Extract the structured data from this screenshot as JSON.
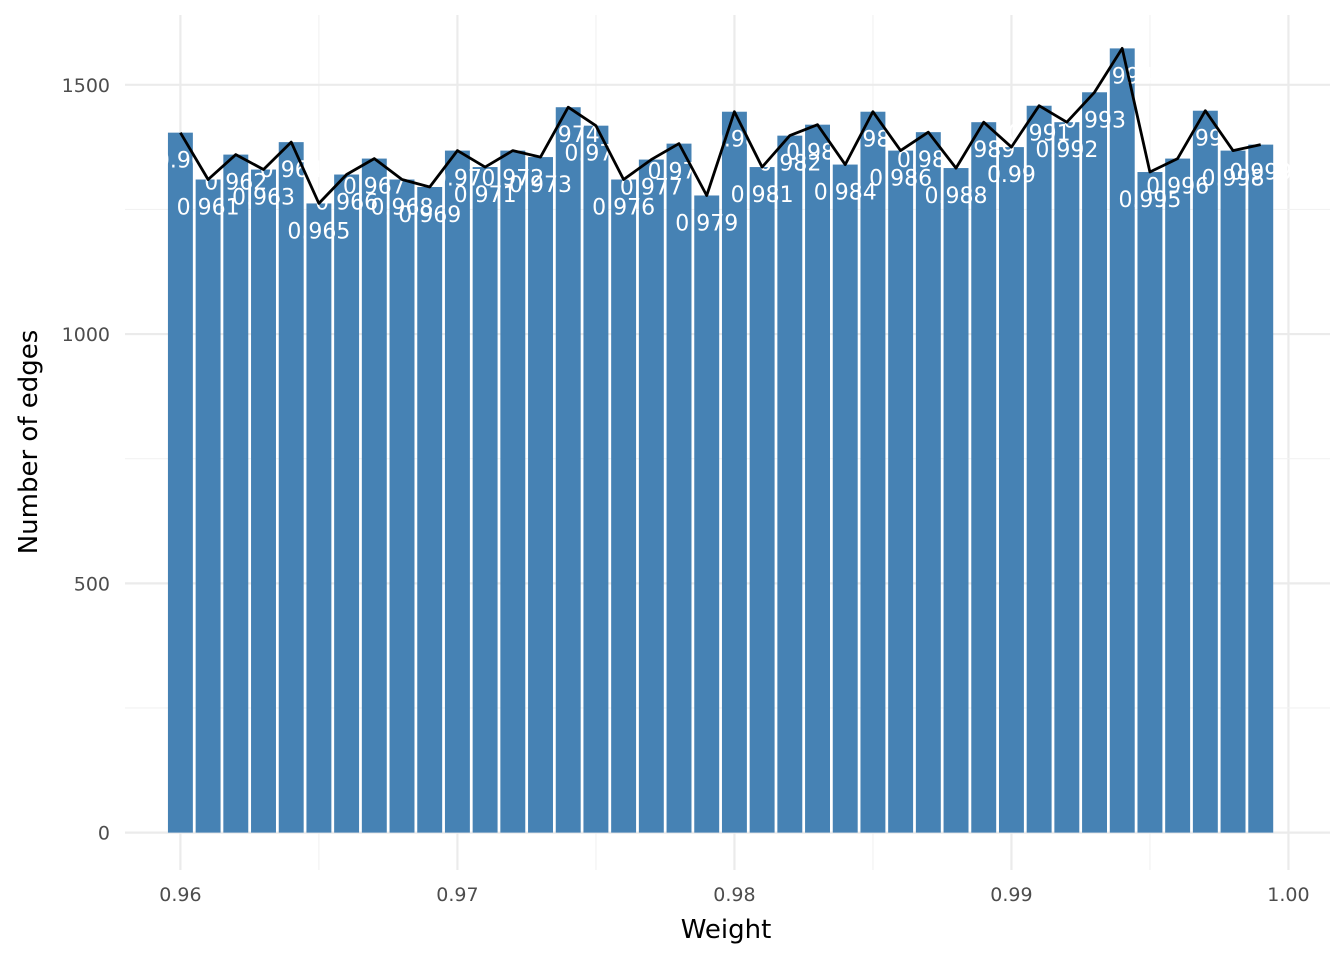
{
  "chart_data": {
    "type": "bar",
    "xlabel": "Weight",
    "ylabel": "Number of edges",
    "xlim": [
      0.958,
      1.0015
    ],
    "ylim": [
      -75,
      1640
    ],
    "x_ticks": [
      "0.96",
      "0.97",
      "0.98",
      "0.99",
      "1.00"
    ],
    "y_ticks": [
      "0",
      "500",
      "1000",
      "1500"
    ],
    "grid": true,
    "bar_color": "#4682b4",
    "line_color": "#000000",
    "categories": [
      "0.96",
      "0.961",
      "0.962",
      "0.963",
      "0.964",
      "0.965",
      "0.966",
      "0.967",
      "0.968",
      "0.969",
      "0.97",
      "0.971",
      "0.972",
      "0.973",
      "0.974",
      "0.975",
      "0.976",
      "0.977",
      "0.978",
      "0.979",
      "0.98",
      "0.981",
      "0.982",
      "0.983",
      "0.984",
      "0.985",
      "0.986",
      "0.987",
      "0.988",
      "0.989",
      "0.99",
      "0.991",
      "0.992",
      "0.993",
      "0.994",
      "0.995",
      "0.996",
      "0.997",
      "0.998",
      "0.999"
    ],
    "values": [
      1404,
      1310,
      1360,
      1330,
      1385,
      1262,
      1320,
      1352,
      1310,
      1295,
      1368,
      1335,
      1368,
      1355,
      1455,
      1418,
      1310,
      1350,
      1382,
      1278,
      1446,
      1335,
      1398,
      1420,
      1340,
      1446,
      1368,
      1405,
      1333,
      1425,
      1375,
      1458,
      1425,
      1485,
      1573,
      1325,
      1352,
      1448,
      1368,
      1380
    ]
  }
}
